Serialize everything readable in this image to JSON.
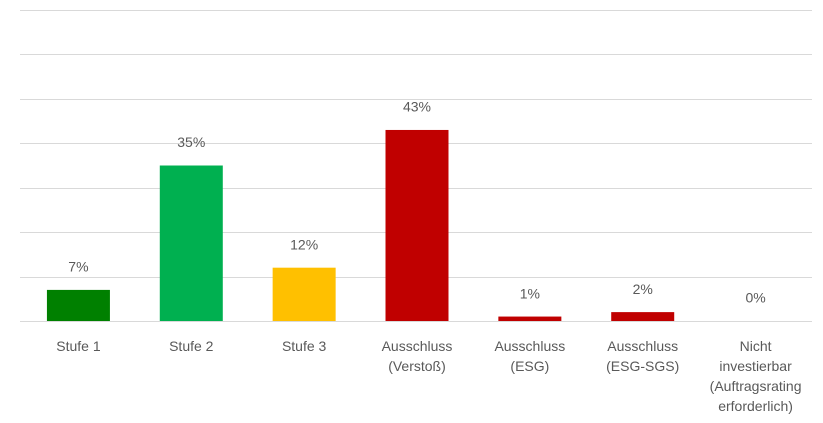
{
  "chart_data": {
    "type": "bar",
    "categories": [
      [
        "Stufe 1"
      ],
      [
        "Stufe 2"
      ],
      [
        "Stufe 3"
      ],
      [
        "Ausschluss",
        "(Verstoß)"
      ],
      [
        "Ausschluss",
        "(ESG)"
      ],
      [
        "Ausschluss",
        "(ESG-SGS)"
      ],
      [
        "Nicht",
        "investierbar",
        "(Auftragsrating",
        "erforderlich)"
      ]
    ],
    "values": [
      7,
      35,
      12,
      43,
      1,
      2,
      0
    ],
    "value_labels": [
      "7%",
      "35%",
      "12%",
      "43%",
      "1%",
      "2%",
      "0%"
    ],
    "colors": [
      "#008000",
      "#00b050",
      "#ffc000",
      "#c00000",
      "#c00000",
      "#c00000",
      "#c00000"
    ],
    "ylim": [
      0,
      70
    ],
    "yticks": [
      0,
      10,
      20,
      30,
      40,
      50,
      60,
      70
    ],
    "grid": true
  }
}
